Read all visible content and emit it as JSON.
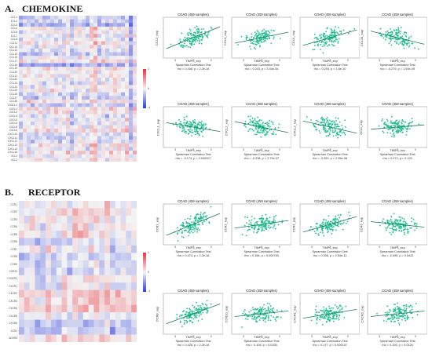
{
  "panel_a": {
    "label": "A.",
    "title": "CHEMOKINE",
    "heatmap": {
      "rows": [
        "CCL1",
        "CCL2",
        "CCL3",
        "CCL4",
        "CCL5",
        "CCL7",
        "CCL8",
        "CCL11",
        "CCL13",
        "CCL14",
        "CCL15",
        "CCL16",
        "CCL17",
        "CCL18",
        "CCL19",
        "CCL20",
        "CCL21",
        "CCL22",
        "CCL23",
        "CCL24",
        "CCL25",
        "CCL26",
        "CCL27",
        "CCL28",
        "CX3CL1",
        "CXCL1",
        "CXCL2",
        "CXCL3",
        "CXCL5",
        "CXCL6",
        "CXCL8",
        "CXCL9",
        "CXCL10",
        "CXCL11",
        "CXCL12",
        "CXCL13",
        "CXCL14",
        "CXCL16",
        "XCL1",
        "XCL2"
      ],
      "legend_ticks": [
        "1",
        "0",
        "-1"
      ]
    },
    "plots": [
      {
        "title": "COAD (459 samples)",
        "ylabel": "CCL2_exp",
        "xlabel": "TIMP3_exp",
        "test": "Spearman Correlation Test",
        "stats": "rho = 0.408, p = 2.2e-16",
        "slope": 1
      },
      {
        "title": "COAD (459 samples)",
        "ylabel": "CCL4_exp",
        "xlabel": "TIMP3_exp",
        "test": "Spearman Correlation Test",
        "stats": "rho = 0.215, p = 3.44e-06",
        "slope": 0.5
      },
      {
        "title": "COAD (459 samples)",
        "ylabel": "CCL5_exp",
        "xlabel": "TIMP3_exp",
        "test": "Spearman Correlation Test",
        "stats": "rho = 0.293, p = 1.6e-10",
        "slope": 0.7
      },
      {
        "title": "COAD (459 samples)",
        "ylabel": "CCL25_exp",
        "xlabel": "TIMP3_exp",
        "test": "Spearman Correlation Test",
        "stats": "rho = -0.279, p = 1.93e-09",
        "slope": -0.6
      },
      {
        "title": "COAD (459 samples)",
        "ylabel": "CXCL1_exp",
        "xlabel": "TIMP3_exp",
        "test": "Spearman Correlation Test",
        "stats": "rho = -0.173, p = 0.000207",
        "slope": -0.4
      },
      {
        "title": "COAD (459 samples)",
        "ylabel": "CXCL2_exp",
        "xlabel": "TIMP3_exp",
        "test": "Spearman Correlation Test",
        "stats": "rho = -0.238, p = 2.79e-07",
        "slope": -0.5
      },
      {
        "title": "COAD (459 samples)",
        "ylabel": "CXCL3_exp",
        "xlabel": "TIMP3_exp",
        "test": "Spearman Correlation Test",
        "stats": "rho = -0.259, p = 2.35e-08",
        "slope": -0.55
      },
      {
        "title": "COAD (459 samples)",
        "ylabel": "XCL1_exp",
        "xlabel": "TIMP3_exp",
        "test": "Spearman Correlation Test",
        "stats": "rho = 0.072, p = 0.123",
        "slope": 0.2
      }
    ]
  },
  "panel_b": {
    "label": "B.",
    "title": "RECEPTOR",
    "heatmap": {
      "rows": [
        "CCR1",
        "CCR2",
        "CCR3",
        "CCR4",
        "CCR5",
        "CCR6",
        "CCR7",
        "CCR8",
        "CCR9",
        "CCR10",
        "CX3CR1",
        "CXCR1",
        "CXCR2",
        "CXCR3",
        "CXCR4",
        "CXCR5",
        "CXCR6",
        "XCR1",
        "ACKR3"
      ],
      "legend_ticks": [
        "1",
        "0",
        "-1"
      ]
    },
    "plots": [
      {
        "title": "COAD (459 samples)",
        "ylabel": "CCR1_exp",
        "xlabel": "TIMP3_exp",
        "test": "Spearman Correlation Test",
        "stats": "rho = 0.474, p = 2.2e-16",
        "slope": 1
      },
      {
        "title": "COAD (459 samples)",
        "ylabel": "CCR2_exp",
        "xlabel": "TIMP3_exp",
        "test": "Spearman Correlation Test",
        "stats": "rho = 0.156, p = 0.000783",
        "slope": 0.35
      },
      {
        "title": "COAD (459 samples)",
        "ylabel": "CCR4_exp",
        "xlabel": "TIMP3_exp",
        "test": "Spearman Correlation Test",
        "stats": "rho = 0.305, p = 2.54e-11",
        "slope": 0.7
      },
      {
        "title": "COAD (459 samples)",
        "ylabel": "CCR6_exp",
        "xlabel": "TIMP3_exp",
        "test": "Spearman Correlation Test",
        "stats": "rho = -0.095, p = 0.0422",
        "slope": -0.25
      },
      {
        "title": "COAD (459 samples)",
        "ylabel": "CCR8_exp",
        "xlabel": "TIMP3_exp",
        "test": "Spearman Correlation Test",
        "stats": "rho = 0.428, p = 2.2e-16",
        "slope": 0.9
      },
      {
        "title": "COAD (459 samples)",
        "ylabel": "CCR10_exp",
        "xlabel": "TIMP3_exp",
        "test": "Spearman Correlation Test",
        "stats": "rho = 0.104, p = 0.0256",
        "slope": 0.25
      },
      {
        "title": "COAD (459 samples)",
        "ylabel": "CXCR1_exp",
        "xlabel": "TIMP3_exp",
        "test": "Spearman Correlation Test",
        "stats": "rho = 0.177, p = 0.000137",
        "slope": 0.4
      },
      {
        "title": "COAD (459 samples)",
        "ylabel": "CXCR2_exp",
        "xlabel": "TIMP3_exp",
        "test": "Spearman Correlation Test",
        "stats": "rho = 0.105, p = 0.0126",
        "slope": 0.25
      }
    ]
  },
  "axis_ticks": {
    "x": [
      "5",
      "7",
      "9"
    ]
  },
  "colors": {
    "point": "#1fbf93",
    "line": "#1a7a5e",
    "pos": "#e8303a",
    "neg": "#2a3be0",
    "neutral": "#f4f4f4"
  }
}
